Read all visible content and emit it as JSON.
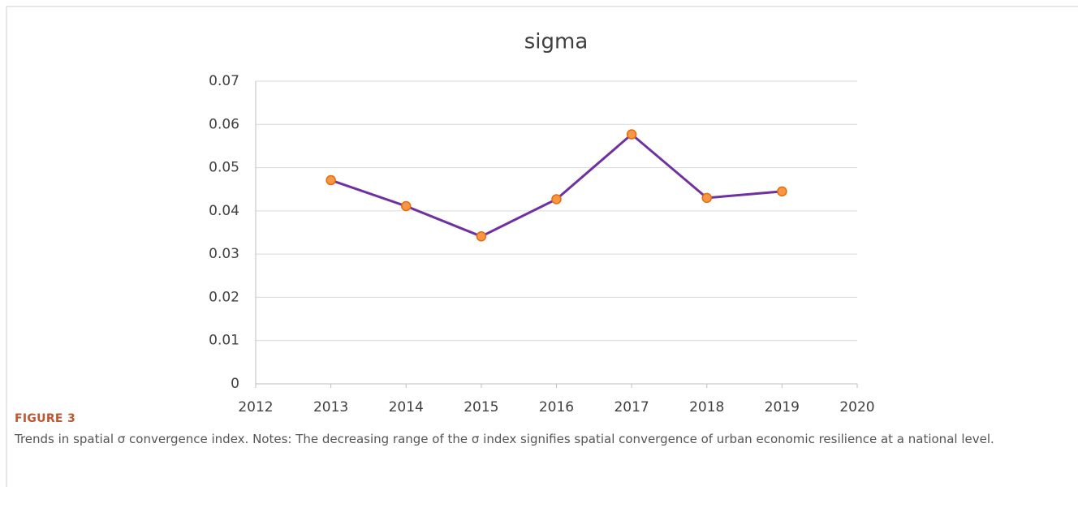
{
  "chart_data": {
    "type": "line",
    "title": "sigma",
    "x": [
      2013,
      2014,
      2015,
      2016,
      2017,
      2018,
      2019
    ],
    "series": [
      {
        "name": "sigma",
        "color": "#7030a0",
        "marker_color": "#f79646",
        "values": [
          0.0471,
          0.0411,
          0.0341,
          0.0427,
          0.0577,
          0.043,
          0.0445
        ]
      }
    ],
    "xlim": [
      2012,
      2020
    ],
    "xticks": [
      2012,
      2013,
      2014,
      2015,
      2016,
      2017,
      2018,
      2019,
      2020
    ],
    "ylim": [
      0,
      0.07
    ],
    "yticks": [
      0,
      0.01,
      0.02,
      0.03,
      0.04,
      0.05,
      0.06,
      0.07
    ],
    "grid": true
  },
  "caption": {
    "label": "FIGURE 3",
    "text": "Trends in spatial σ convergence index. Notes: The decreasing range of the σ index signifies spatial convergence of urban economic resilience at a national level."
  }
}
